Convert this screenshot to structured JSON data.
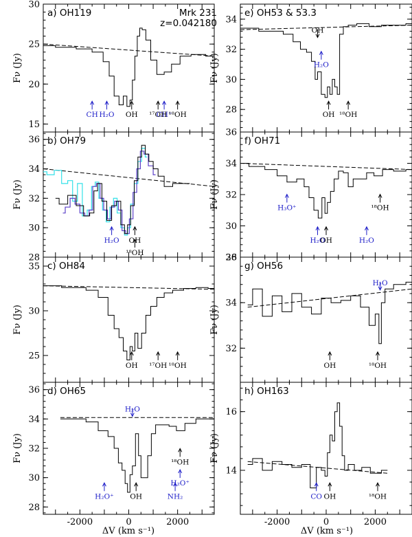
{
  "figure": {
    "source_label": "Mrk 231",
    "redshift_label": "z=0.042180",
    "xlabel": "ΔV (km s⁻¹)",
    "ylabel": "Fν (Jy)"
  },
  "colors": {
    "black": "#000000",
    "blue": "#1c1cc8",
    "cyan": "#33e0e8",
    "purple": "#5b3fc8"
  },
  "chart_data": [
    {
      "type": "line",
      "id": "a",
      "title": "a) OH119",
      "xlim": [
        -3500,
        3500
      ],
      "ylim": [
        14.0,
        30.0
      ],
      "xticks": [
        -2000,
        0,
        2000
      ],
      "yticks": [
        15,
        20,
        25,
        30
      ],
      "continuum": {
        "x": [
          -3500,
          3500
        ],
        "y": [
          25.0,
          23.5
        ]
      },
      "spectrum": {
        "x": [
          -3500,
          -2500,
          -1800,
          -1200,
          -900,
          -700,
          -500,
          -300,
          -150,
          0,
          100,
          200,
          300,
          400,
          500,
          600,
          800,
          1000,
          1300,
          1600,
          1900,
          2300,
          2800,
          3500
        ],
        "y": [
          24.8,
          24.6,
          24.4,
          24.0,
          22.8,
          21.0,
          18.5,
          17.4,
          18.5,
          17.2,
          18.0,
          20.5,
          23.5,
          26.0,
          27.0,
          26.8,
          25.5,
          23.0,
          21.2,
          21.5,
          22.5,
          23.5,
          23.7,
          23.5
        ]
      },
      "annotations": [
        {
          "label": "CH",
          "x": -1500,
          "color": "blue",
          "pos": "below"
        },
        {
          "label": "H₂O",
          "x": -900,
          "color": "blue",
          "pos": "below"
        },
        {
          "label": "OH",
          "x": 120,
          "color": "black",
          "pos": "below"
        },
        {
          "label": "CH⁺",
          "x": 1450,
          "color": "blue",
          "pos": "below"
        },
        {
          "label": "¹⁷OH",
          "x": 1200,
          "color": "black",
          "pos": "below"
        },
        {
          "label": "¹⁸OH",
          "x": 2000,
          "color": "black",
          "pos": "below"
        }
      ]
    },
    {
      "type": "line",
      "id": "b",
      "title": "b) OH79",
      "xlim": [
        -3500,
        3500
      ],
      "ylim": [
        28.0,
        36.5
      ],
      "xticks": [
        -2000,
        0,
        2000
      ],
      "yticks": [
        28,
        30,
        32,
        34,
        36
      ],
      "continuum": {
        "x": [
          -3500,
          3500
        ],
        "y": [
          34.0,
          32.8
        ]
      },
      "spectrum": {
        "x": [
          -3000,
          -2700,
          -2300,
          -2000,
          -1700,
          -1500,
          -1350,
          -1200,
          -1000,
          -800,
          -600,
          -400,
          -250,
          -100,
          0,
          150,
          300,
          450,
          600,
          750,
          900,
          1100,
          1300,
          1600,
          2000,
          2500
        ],
        "y": [
          32.0,
          31.6,
          32.2,
          31.5,
          30.8,
          31.0,
          32.5,
          33.0,
          31.8,
          30.5,
          31.5,
          31.8,
          30.2,
          29.6,
          30.2,
          31.5,
          33.2,
          34.8,
          35.6,
          35.0,
          34.5,
          34.0,
          33.5,
          32.8,
          33.0,
          33.0
        ]
      },
      "overlays": [
        {
          "name": "model-cyan",
          "color": "cyan",
          "x": [
            -3500,
            -3200,
            -2900,
            -2600,
            -2400,
            -2200,
            -2000,
            -1800,
            -1600,
            -1450,
            -1300,
            -1150,
            -1000,
            -850,
            -700,
            -550,
            -400,
            -250,
            -100,
            0,
            150,
            300,
            450,
            600,
            750
          ],
          "y": [
            33.8,
            33.6,
            33.9,
            33.0,
            33.2,
            31.8,
            33.0,
            30.8,
            31.2,
            32.8,
            33.1,
            32.0,
            31.2,
            30.4,
            31.4,
            32.0,
            31.0,
            30.0,
            29.5,
            30.0,
            31.6,
            33.0,
            34.5,
            35.4,
            34.8
          ]
        },
        {
          "name": "model-purple",
          "color": "purple",
          "x": [
            -2700,
            -2500,
            -2300,
            -2100,
            -1900,
            -1700,
            -1550,
            -1400,
            -1250,
            -1100,
            -950,
            -800,
            -650,
            -500,
            -350,
            -200,
            -50,
            100,
            250,
            400,
            550,
            700,
            900,
            1100
          ],
          "y": [
            31.0,
            31.4,
            32.0,
            31.6,
            31.0,
            30.8,
            31.2,
            32.8,
            33.0,
            32.0,
            31.2,
            30.6,
            31.4,
            31.8,
            31.2,
            29.8,
            29.6,
            30.6,
            32.4,
            34.0,
            35.2,
            35.0,
            34.2,
            33.6
          ]
        }
      ],
      "annotations": [
        {
          "label": "H₂O",
          "x": -700,
          "color": "blue",
          "pos": "below"
        },
        {
          "label": "OH",
          "x": 250,
          "color": "black",
          "pos": "below"
        },
        {
          "label": "¹⁸OH",
          "x": 250,
          "color": "black",
          "pos": "below2"
        }
      ]
    },
    {
      "type": "line",
      "id": "c",
      "title": "c) OH84",
      "xlim": [
        -3500,
        3500
      ],
      "ylim": [
        22.0,
        36.0
      ],
      "xticks": [
        -2000,
        0,
        2000
      ],
      "yticks": [
        25,
        30,
        35
      ],
      "continuum": {
        "x": [
          -3500,
          3500
        ],
        "y": [
          32.8,
          32.4
        ]
      },
      "spectrum": {
        "x": [
          -3500,
          -2000,
          -1500,
          -1000,
          -700,
          -500,
          -300,
          -150,
          0,
          100,
          200,
          300,
          450,
          600,
          800,
          1000,
          1300,
          1600,
          2000,
          2500,
          3000,
          3500
        ],
        "y": [
          32.8,
          32.6,
          32.3,
          31.5,
          29.5,
          28.0,
          27.0,
          25.5,
          24.5,
          26.0,
          25.5,
          27.5,
          25.8,
          27.5,
          29.5,
          30.5,
          31.5,
          32.0,
          32.3,
          32.5,
          32.6,
          32.5
        ]
      },
      "annotations": [
        {
          "label": "OH",
          "x": 120,
          "color": "black",
          "pos": "below"
        },
        {
          "label": "¹⁷OH",
          "x": 1200,
          "color": "black",
          "pos": "below"
        },
        {
          "label": "¹⁸OH",
          "x": 2000,
          "color": "black",
          "pos": "below"
        }
      ]
    },
    {
      "type": "line",
      "id": "d",
      "title": "d) OH65",
      "xlim": [
        -3500,
        3500
      ],
      "ylim": [
        27.5,
        36.5
      ],
      "xticks": [
        -2000,
        0,
        2000
      ],
      "yticks": [
        28,
        30,
        32,
        34,
        36
      ],
      "continuum": {
        "x": [
          -2800,
          3500
        ],
        "y": [
          34.1,
          34.1
        ]
      },
      "spectrum": {
        "x": [
          -2800,
          -2000,
          -1500,
          -1000,
          -700,
          -500,
          -350,
          -200,
          -100,
          0,
          100,
          200,
          350,
          450,
          550,
          700,
          850,
          1000,
          1200,
          1500,
          1800,
          2100,
          2500,
          3000,
          3500
        ],
        "y": [
          34.0,
          34.0,
          33.8,
          33.2,
          32.8,
          32.0,
          31.0,
          30.5,
          29.6,
          29.0,
          30.2,
          30.8,
          33.0,
          31.5,
          30.0,
          30.0,
          31.5,
          33.0,
          33.6,
          33.6,
          33.5,
          33.2,
          33.7,
          34.0,
          34.0
        ]
      },
      "annotations": [
        {
          "label": "H₂O",
          "x": 150,
          "color": "blue",
          "pos": "above"
        },
        {
          "label": "H₂O⁺",
          "x": -1000,
          "color": "blue",
          "pos": "below"
        },
        {
          "label": "OH",
          "x": 300,
          "color": "black",
          "pos": "below"
        },
        {
          "label": "¹⁸OH",
          "x": 2100,
          "color": "black",
          "pos": "mid"
        },
        {
          "label": "H₂O⁺",
          "x": 2100,
          "color": "blue",
          "pos": "low"
        },
        {
          "label": "NH₂",
          "x": 1900,
          "color": "blue",
          "pos": "below"
        }
      ]
    },
    {
      "type": "line",
      "id": "e",
      "title": "e) OH53 & 53.3",
      "xlim": [
        -3500,
        3500
      ],
      "ylim": [
        26.5,
        35.0
      ],
      "xticks": [
        -2000,
        0,
        2000
      ],
      "yticks": [
        28,
        30,
        32,
        34
      ],
      "continuum": {
        "x": [
          -3500,
          3500
        ],
        "y": [
          33.3,
          33.6
        ]
      },
      "spectrum": {
        "x": [
          -3500,
          -2000,
          -1500,
          -1200,
          -900,
          -700,
          -500,
          -400,
          -300,
          -100,
          0,
          100,
          200,
          300,
          400,
          500,
          600,
          800,
          1000,
          1500,
          2000,
          2500,
          3000,
          3500
        ],
        "y": [
          33.4,
          33.2,
          33.0,
          32.5,
          32.0,
          31.8,
          31.2,
          30.0,
          30.5,
          29.0,
          28.8,
          29.5,
          29.0,
          30.0,
          29.5,
          29.0,
          33.0,
          33.5,
          33.6,
          33.7,
          33.5,
          33.6,
          33.6,
          33.7
        ]
      },
      "annotations": [
        {
          "label": "OH",
          "x": -350,
          "color": "black",
          "pos": "above"
        },
        {
          "label": "H₂O",
          "x": -200,
          "color": "blue",
          "pos": "above2"
        },
        {
          "label": "OH",
          "x": 100,
          "color": "black",
          "pos": "below"
        },
        {
          "label": "¹⁸OH",
          "x": 900,
          "color": "black",
          "pos": "below"
        }
      ]
    },
    {
      "type": "line",
      "id": "f",
      "title": "f) OH71",
      "xlim": [
        -3500,
        3500
      ],
      "ylim": [
        28.0,
        36.0
      ],
      "xticks": [
        -2000,
        0,
        2000
      ],
      "yticks": [
        28,
        30,
        32,
        34,
        36
      ],
      "continuum": {
        "x": [
          -3500,
          3500
        ],
        "y": [
          34.0,
          33.6
        ]
      },
      "spectrum": {
        "x": [
          -3500,
          -2800,
          -2200,
          -1800,
          -1400,
          -1000,
          -800,
          -600,
          -400,
          -250,
          -100,
          0,
          100,
          250,
          400,
          600,
          800,
          1000,
          1200,
          1500,
          1800,
          2100,
          2500,
          3000,
          3500
        ],
        "y": [
          34.0,
          33.8,
          33.6,
          33.2,
          32.8,
          33.0,
          32.5,
          31.8,
          31.0,
          30.5,
          31.8,
          30.8,
          31.5,
          32.2,
          33.0,
          33.5,
          33.4,
          32.5,
          33.0,
          33.0,
          33.4,
          33.2,
          33.6,
          33.5,
          33.6
        ]
      },
      "annotations": [
        {
          "label": "H₃O⁺",
          "x": -1600,
          "color": "blue",
          "pos": "mid"
        },
        {
          "label": "H₂O",
          "x": -350,
          "color": "blue",
          "pos": "below"
        },
        {
          "label": "OH",
          "x": 0,
          "color": "black",
          "pos": "below"
        },
        {
          "label": "¹⁸OH",
          "x": 2200,
          "color": "black",
          "pos": "mid"
        },
        {
          "label": "H₂O",
          "x": 1650,
          "color": "blue",
          "pos": "below"
        }
      ]
    },
    {
      "type": "line",
      "id": "g",
      "title": "g) OH56",
      "xlim": [
        -3500,
        3500
      ],
      "ylim": [
        30.5,
        36.0
      ],
      "xticks": [
        -2000,
        0,
        2000
      ],
      "yticks": [
        32,
        34,
        36
      ],
      "continuum": {
        "x": [
          -3200,
          3500
        ],
        "y": [
          33.8,
          34.6
        ]
      },
      "spectrum": {
        "x": [
          -3200,
          -2800,
          -2400,
          -2000,
          -1600,
          -1200,
          -800,
          -400,
          0,
          400,
          800,
          1200,
          1600,
          1900,
          2100,
          2200,
          2300,
          2500,
          3000,
          3500
        ],
        "y": [
          33.9,
          34.6,
          33.4,
          34.3,
          33.6,
          34.4,
          33.8,
          33.5,
          34.2,
          34.0,
          34.1,
          34.3,
          33.8,
          33.0,
          33.5,
          32.2,
          34.0,
          34.6,
          34.8,
          34.9
        ]
      },
      "annotations": [
        {
          "label": "H₂O",
          "x": 2200,
          "color": "blue",
          "pos": "above"
        },
        {
          "label": "OH",
          "x": 150,
          "color": "black",
          "pos": "below"
        },
        {
          "label": "¹⁸OH",
          "x": 2100,
          "color": "black",
          "pos": "below"
        }
      ]
    },
    {
      "type": "line",
      "id": "h",
      "title": "h) OH163",
      "xlim": [
        -3500,
        3500
      ],
      "ylim": [
        12.5,
        17.0
      ],
      "xticks": [
        -2000,
        0,
        2000
      ],
      "yticks": [
        14,
        16
      ],
      "continuum": {
        "x": [
          -3200,
          2500
        ],
        "y": [
          14.3,
          13.9
        ]
      },
      "spectrum": {
        "x": [
          -3200,
          -2800,
          -2400,
          -2000,
          -1600,
          -1200,
          -800,
          -500,
          -300,
          -100,
          0,
          100,
          200,
          300,
          400,
          500,
          600,
          700,
          800,
          1000,
          1300,
          1600,
          2000,
          2500
        ],
        "y": [
          14.2,
          14.4,
          14.0,
          14.3,
          14.2,
          14.1,
          14.2,
          13.4,
          14.1,
          14.0,
          13.8,
          14.6,
          15.2,
          15.0,
          16.0,
          16.3,
          15.5,
          14.5,
          14.0,
          14.2,
          14.0,
          14.1,
          13.9,
          14.0
        ]
      },
      "annotations": [
        {
          "label": "CO",
          "x": -400,
          "color": "blue",
          "pos": "below"
        },
        {
          "label": "OH",
          "x": 150,
          "color": "black",
          "pos": "below"
        },
        {
          "label": "¹⁸OH",
          "x": 2100,
          "color": "black",
          "pos": "below"
        }
      ]
    }
  ]
}
